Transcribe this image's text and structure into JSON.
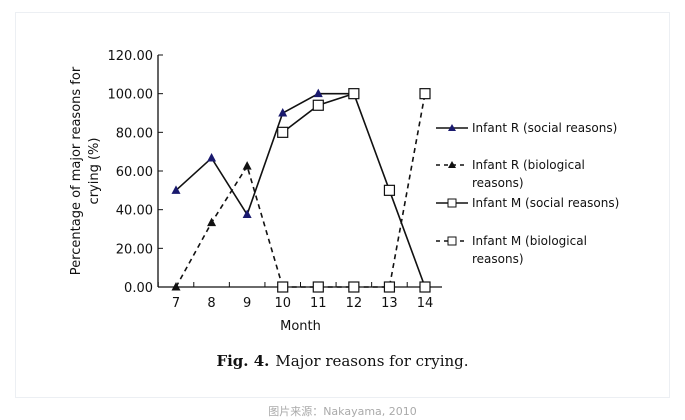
{
  "chart_data": {
    "type": "line",
    "title": "Major reasons for crying.",
    "figure_label": "Fig. 4.",
    "xlabel": "Month",
    "ylabel_lines": [
      "Percentage of major reasons for",
      "crying (%)"
    ],
    "x": [
      7,
      8,
      9,
      10,
      11,
      12,
      13,
      14
    ],
    "xlim": [
      7,
      14
    ],
    "ylim": [
      0,
      120
    ],
    "yticks": [
      "0.00",
      "20.00",
      "40.00",
      "60.00",
      "80.00",
      "100.00",
      "120.00"
    ],
    "ytick_values": [
      0,
      20,
      40,
      60,
      80,
      100,
      120
    ],
    "grid": false,
    "legend_position": "right",
    "series": [
      {
        "name": "Infant R (social reasons)",
        "legend_lines": [
          "Infant R (social reasons)"
        ],
        "dash": false,
        "marker": "triangle",
        "color": "#1a1a6e",
        "x": [
          7,
          8,
          9,
          10,
          11,
          12
        ],
        "values": [
          50,
          66.7,
          37.5,
          90,
          100,
          100
        ]
      },
      {
        "name": "Infant R (biological reasons)",
        "legend_lines": [
          "Infant R (biological",
          "reasons)"
        ],
        "dash": true,
        "marker": "triangle",
        "color": "#111111",
        "x": [
          7,
          8,
          9,
          10
        ],
        "values": [
          0,
          33.3,
          62.5,
          0
        ]
      },
      {
        "name": "Infant M (social reasons)",
        "legend_lines": [
          "Infant M (social reasons)"
        ],
        "dash": false,
        "marker": "square",
        "color": "#111111",
        "x": [
          10,
          11,
          12,
          13,
          14
        ],
        "values": [
          80,
          94,
          100,
          50,
          0
        ]
      },
      {
        "name": "Infant M (biological reasons)",
        "legend_lines": [
          "Infant M (biological",
          "reasons)"
        ],
        "dash": true,
        "marker": "square",
        "color": "#111111",
        "x": [
          10,
          11,
          12,
          13,
          14
        ],
        "values": [
          0,
          0,
          0,
          0,
          100
        ]
      }
    ]
  },
  "source": "图片来源：Nakayama, 2010"
}
